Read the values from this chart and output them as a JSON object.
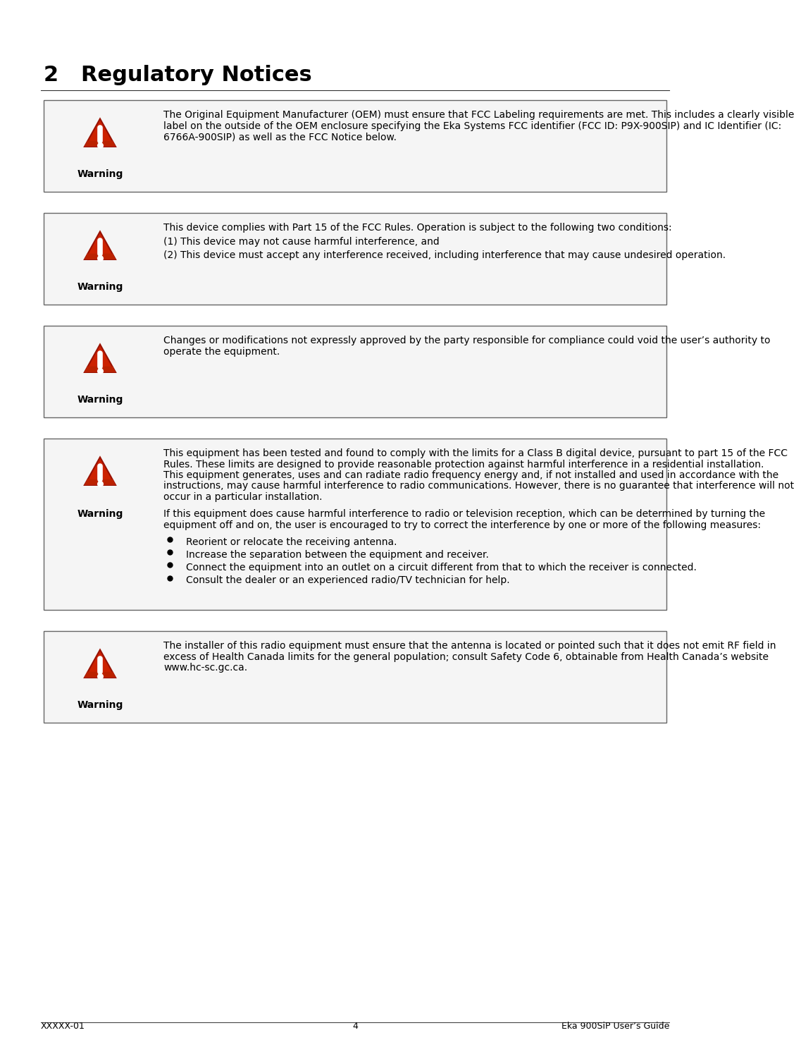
{
  "page_title": "2   Regulatory Notices",
  "background_color": "#ffffff",
  "border_color": "#555555",
  "title_font_size": 22,
  "body_font_size": 10.0,
  "footer_left": "XXXXX-01",
  "footer_center": "4",
  "footer_right": "Eka 900SiP User’s Guide",
  "warning_label": "Warning",
  "warnings": [
    {
      "text": "The Original Equipment Manufacturer (OEM) must ensure that FCC Labeling requirements are met.  This includes a clearly visible label on the outside of the OEM enclosure specifying the Eka Systems FCC identifier (FCC ID: P9X-900SIP) and IC Identifier (IC: 6766A-900SIP) as well as the FCC Notice below."
    },
    {
      "text": "This device complies with Part 15 of the FCC Rules. Operation is subject to the following two conditions:\n(1) This device may not cause harmful interference, and\n(2) This device must accept any interference received, including interference that may cause undesired operation."
    },
    {
      "text": "Changes or modifications not expressly approved by the party responsible for compliance could void the user’s authority to operate the equipment."
    },
    {
      "text_para1": "This equipment has been tested and found to comply with the limits for a Class B digital device, pursuant to part 15 of the FCC Rules.  These limits are designed to provide reasonable protection against harmful interference in a residential installation.  This equipment generates, uses and can radiate radio frequency energy and, if not installed and used in accordance with the instructions, may cause harmful interference to radio communications.  However, there is no guarantee that interference will not occur in a particular installation.",
      "text_para2": "If this equipment does cause harmful interference to radio or television reception, which can be determined by turning the equipment off and on, the user is encouraged to try to correct the interference by one or more of the following measures:",
      "bullets": [
        "Reorient or relocate the receiving antenna.",
        "Increase the separation between the equipment and receiver.",
        "Connect the equipment into an outlet on a circuit different from that to which the receiver is connected.",
        "Consult the dealer or an experienced radio/TV technician for help."
      ]
    },
    {
      "text": "The installer of this radio equipment must ensure that the antenna is located or pointed such that it does not emit RF field in excess of Health Canada limits for the general population; consult Safety Code 6, obtainable from Health Canada’s website www.hc-sc.gc.ca."
    }
  ]
}
